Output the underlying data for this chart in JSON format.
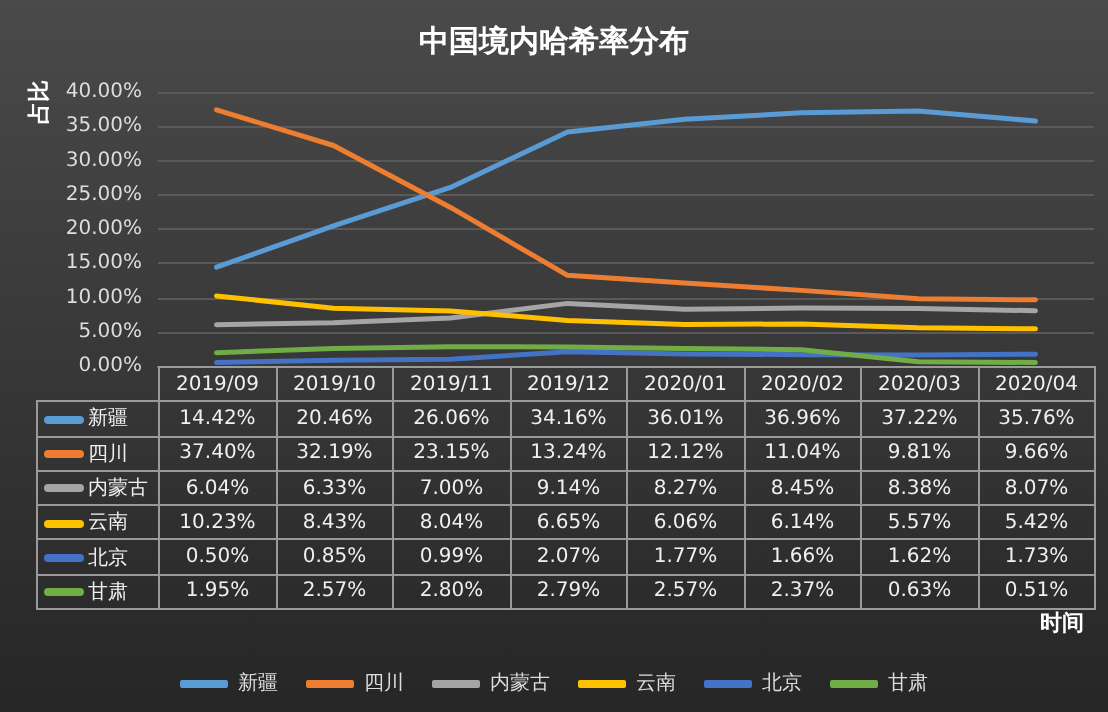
{
  "chart_data": {
    "type": "line",
    "title": "中国境内哈希率分布",
    "annotations": [
      "时间"
    ],
    "ylabel": "占比",
    "categories": [
      "2019/09",
      "2019/10",
      "2019/11",
      "2019/12",
      "2020/01",
      "2020/02",
      "2020/03",
      "2020/04"
    ],
    "series": [
      {
        "name": "新疆",
        "color": "#5b9bd5",
        "values": [
          14.42,
          20.46,
          26.06,
          34.16,
          36.01,
          36.96,
          37.22,
          35.76
        ],
        "value_labels": [
          "14.42%",
          "20.46%",
          "26.06%",
          "34.16%",
          "36.01%",
          "36.96%",
          "37.22%",
          "35.76%"
        ]
      },
      {
        "name": "四川",
        "color": "#ed7d31",
        "values": [
          37.4,
          32.19,
          23.15,
          13.24,
          12.12,
          11.04,
          9.81,
          9.66
        ],
        "value_labels": [
          "37.40%",
          "32.19%",
          "23.15%",
          "13.24%",
          "12.12%",
          "11.04%",
          "9.81%",
          "9.66%"
        ]
      },
      {
        "name": "内蒙古",
        "color": "#a5a5a5",
        "values": [
          6.04,
          6.33,
          7.0,
          9.14,
          8.27,
          8.45,
          8.38,
          8.07
        ],
        "value_labels": [
          "6.04%",
          "6.33%",
          "7.00%",
          "9.14%",
          "8.27%",
          "8.45%",
          "8.38%",
          "8.07%"
        ]
      },
      {
        "name": "云南",
        "color": "#ffc000",
        "values": [
          10.23,
          8.43,
          8.04,
          6.65,
          6.06,
          6.14,
          5.57,
          5.42
        ],
        "value_labels": [
          "10.23%",
          "8.43%",
          "8.04%",
          "6.65%",
          "6.06%",
          "6.14%",
          "5.57%",
          "5.42%"
        ]
      },
      {
        "name": "北京",
        "color": "#4472c4",
        "values": [
          0.5,
          0.85,
          0.99,
          2.07,
          1.77,
          1.66,
          1.62,
          1.73
        ],
        "value_labels": [
          "0.50%",
          "0.85%",
          "0.99%",
          "2.07%",
          "1.77%",
          "1.66%",
          "1.62%",
          "1.73%"
        ]
      },
      {
        "name": "甘肃",
        "color": "#70ad47",
        "values": [
          1.95,
          2.57,
          2.8,
          2.79,
          2.57,
          2.37,
          0.63,
          0.51
        ],
        "value_labels": [
          "1.95%",
          "2.57%",
          "2.80%",
          "2.79%",
          "2.57%",
          "2.37%",
          "0.63%",
          "0.51%"
        ]
      }
    ],
    "ylim": [
      0,
      40
    ],
    "yticks": [
      {
        "value": 0,
        "label": "0.00%"
      },
      {
        "value": 5,
        "label": "5.00%"
      },
      {
        "value": 10,
        "label": "10.00%"
      },
      {
        "value": 15,
        "label": "15.00%"
      },
      {
        "value": 20,
        "label": "20.00%"
      },
      {
        "value": 25,
        "label": "25.00%"
      },
      {
        "value": 30,
        "label": "30.00%"
      },
      {
        "value": 35,
        "label": "35.00%"
      },
      {
        "value": 40,
        "label": "40.00%"
      }
    ],
    "grid": "y",
    "legend": "bottom",
    "marker": "none",
    "line_style": "solid"
  }
}
